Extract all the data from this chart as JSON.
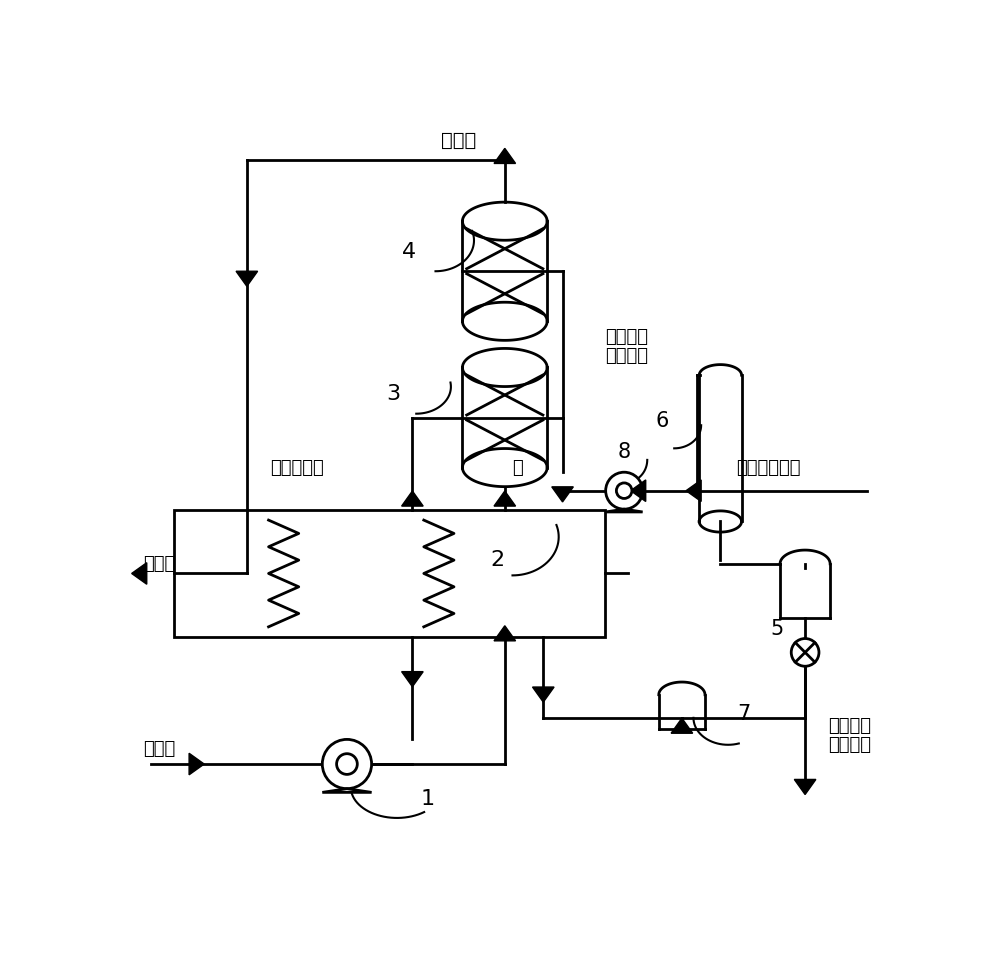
{
  "bg_color": "#ffffff",
  "line_color": "#000000",
  "line_width": 2.0,
  "labels": {
    "pure_h2_top": "纯氢气",
    "label4": "4",
    "label3": "3",
    "co2_mix_1": "二氧化碳",
    "co2_mix_2": "混合余气",
    "h2_mix": "氢气混合余气",
    "label8": "8",
    "label6": "6",
    "label5": "5",
    "label2": "2",
    "label1": "1",
    "label7": "7",
    "methanol_steam": "甲醇水蒸汽",
    "water": "水",
    "pure_h2_left": "纯氢气",
    "methanol_water": "甲醇水",
    "liquid_co2_1": "液态二氧",
    "liquid_co2_2": "化碳产出"
  },
  "font_size": 13
}
